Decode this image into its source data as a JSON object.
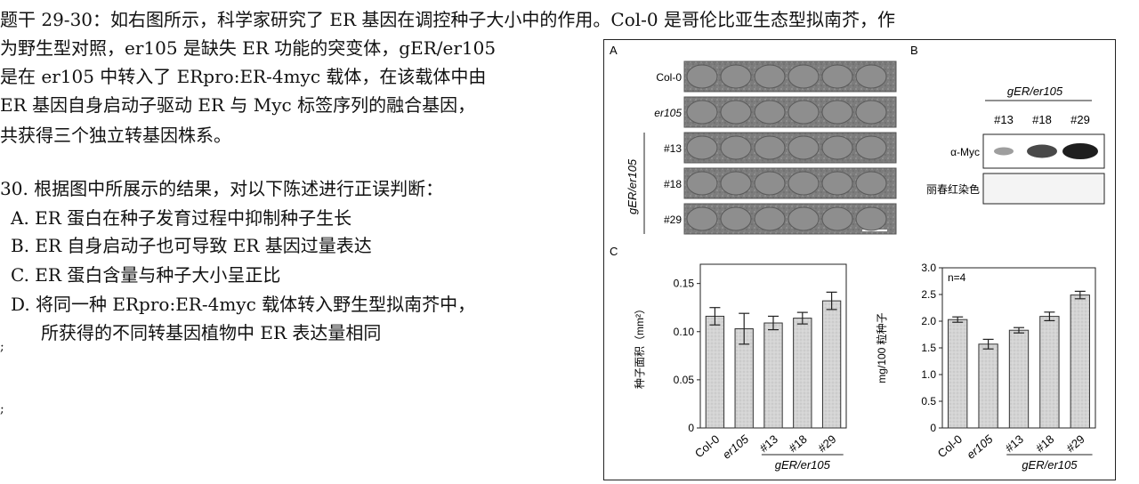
{
  "question": {
    "intro_lines": [
      "题干 29-30：如右图所示，科学家研究了 ER 基因在调控种子大小中的作用。Col-0 是哥伦比亚生态型拟南芥，作",
      "为野生型对照，er105 是缺失 ER 功能的突变体，gER/er105",
      "是在 er105 中转入了 ERpro:ER-4myc 载体，在该载体中由",
      "ER 基因自身启动子驱动 ER 与 Myc 标签序列的融合基因，",
      "共获得三个独立转基因株系。"
    ],
    "q30_stem": "30. 根据图中所展示的结果，对以下陈述进行正误判断：",
    "options": [
      "A. ER 蛋白在种子发育过程中抑制种子生长",
      "B. ER 自身启动子也可导致 ER 基因过量表达",
      "C. ER 蛋白含量与种子大小呈正比",
      "D.  将同一种 ERpro:ER-4myc 载体转入野生型拟南芥中，",
      "所获得的不同转基因植物中 ER 表达量相同"
    ],
    "stray_marks": [
      ";",
      ";"
    ]
  },
  "figure": {
    "panel_a": {
      "label": "A",
      "rows": [
        "Col-0",
        "er105",
        "#13",
        "#18",
        "#29"
      ],
      "group_label": "gER/er105"
    },
    "panel_b": {
      "label": "B",
      "group_label": "gER/er105",
      "lanes": [
        "#13",
        "#18",
        "#29"
      ],
      "row1_label": "α-Myc",
      "row2_label": "丽春红染色",
      "myc_band_intensity": [
        0.25,
        0.75,
        1.0
      ]
    },
    "panel_c_label": "C"
  },
  "chart_data": [
    {
      "type": "bar",
      "categories": [
        "Col-0",
        "er105",
        "#13",
        "#18",
        "#29"
      ],
      "group_label": "gER/er105",
      "values": [
        0.116,
        0.103,
        0.109,
        0.114,
        0.132
      ],
      "errors": [
        0.009,
        0.016,
        0.007,
        0.006,
        0.009
      ],
      "ylabel": "种子面积（mm²）",
      "yticks": [
        "0",
        "0.05",
        "0.10",
        "0.15"
      ],
      "ylim": [
        0,
        0.17
      ]
    },
    {
      "type": "bar",
      "categories": [
        "Col-0",
        "er105",
        "#13",
        "#18",
        "#29"
      ],
      "group_label": "gER/er105",
      "values": [
        2.03,
        1.57,
        1.83,
        2.09,
        2.49
      ],
      "errors": [
        0.05,
        0.09,
        0.05,
        0.08,
        0.07
      ],
      "ylabel": "mg/100 粒种子",
      "yticks": [
        "0",
        "0.5",
        "1.0",
        "1.5",
        "2.0",
        "2.5",
        "3.0"
      ],
      "ylim": [
        0,
        3.0
      ],
      "annotation": "n=4"
    }
  ]
}
